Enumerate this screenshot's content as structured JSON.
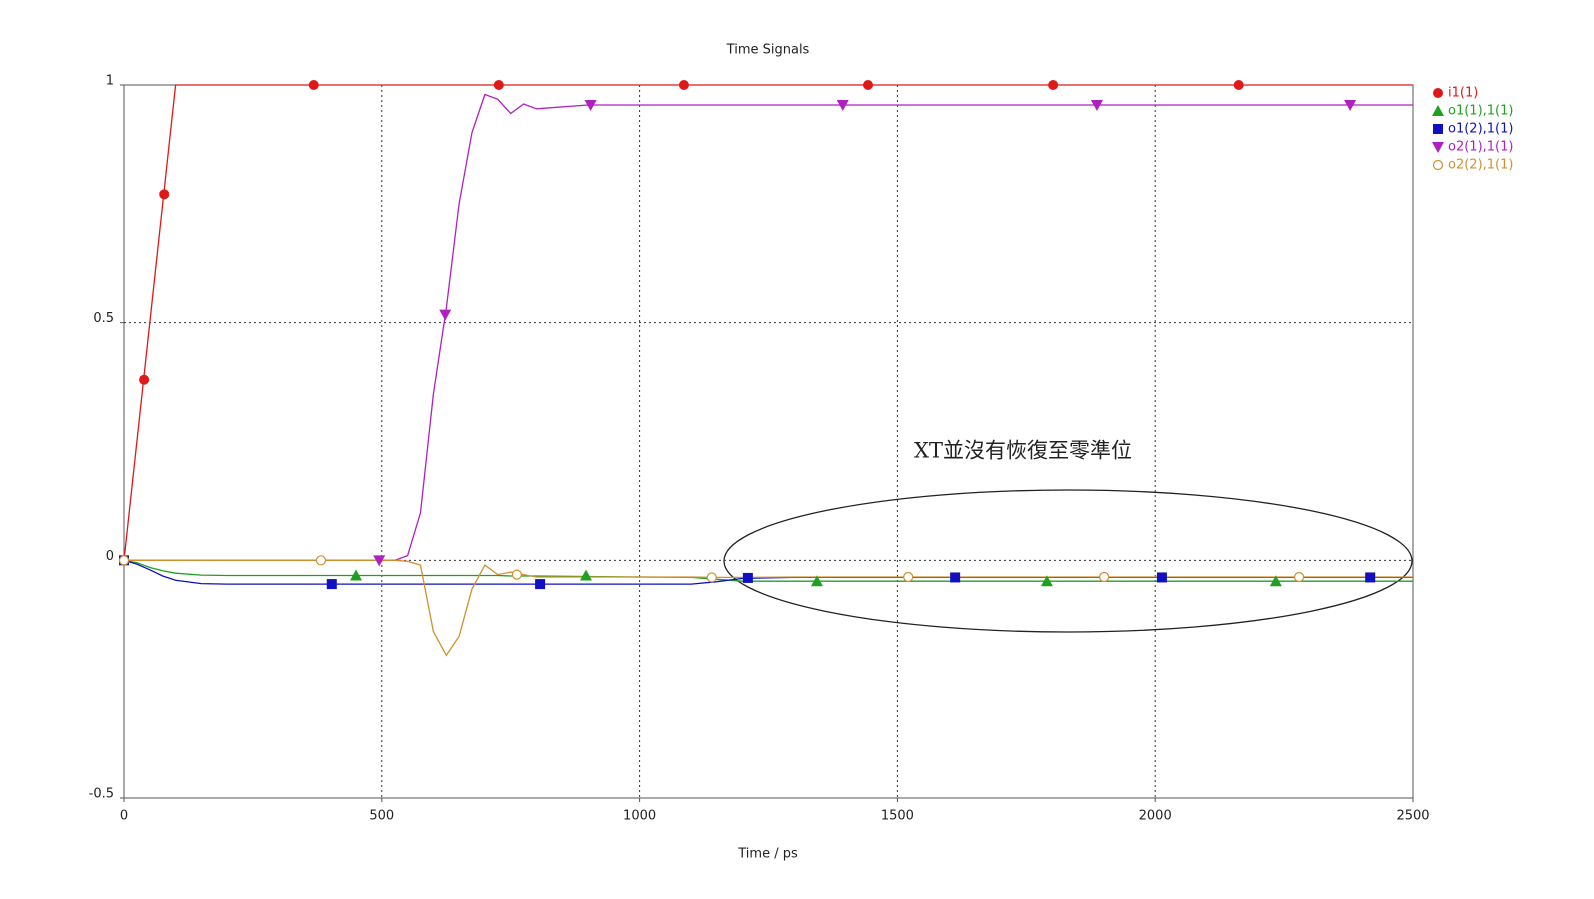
{
  "chart_data": {
    "type": "line",
    "title": "Time Signals",
    "x_label": "Time / ps",
    "x": [
      0,
      25,
      50,
      75,
      100,
      150,
      200,
      300,
      400,
      500,
      525,
      550,
      575,
      600,
      625,
      650,
      675,
      700,
      725,
      750,
      775,
      800,
      900,
      1000,
      1100,
      1150,
      1200,
      1300,
      1500,
      2000,
      2500
    ],
    "series": [
      {
        "name": "i1(1)",
        "color": "#e01818",
        "marker": "circle",
        "values": [
          0,
          0.25,
          0.5,
          0.75,
          1,
          1,
          1,
          1,
          1,
          1,
          1,
          1,
          1,
          1,
          1,
          1,
          1,
          1,
          1,
          1,
          1,
          1,
          1,
          1,
          1,
          1,
          1,
          1,
          1,
          1,
          1
        ],
        "marker_x": [
          39,
          78,
          368,
          727,
          1086,
          1443,
          1802,
          2162
        ],
        "marker_values": [
          0.38,
          0.77,
          1,
          1,
          1,
          1,
          1,
          1
        ]
      },
      {
        "name": "o1(1),1(1)",
        "color": "#20a020",
        "marker": "triangle-up",
        "values": [
          0,
          -0.005,
          -0.015,
          -0.022,
          -0.027,
          -0.031,
          -0.032,
          -0.032,
          -0.032,
          -0.032,
          -0.032,
          -0.032,
          -0.032,
          -0.032,
          -0.032,
          -0.032,
          -0.032,
          -0.032,
          -0.032,
          -0.033,
          -0.033,
          -0.033,
          -0.034,
          -0.035,
          -0.036,
          -0.04,
          -0.044,
          -0.044,
          -0.044,
          -0.044,
          -0.044
        ],
        "marker_x": [
          450,
          896,
          1344,
          1790,
          2234
        ],
        "marker_values": [
          -0.032,
          -0.032,
          -0.044,
          -0.044,
          -0.044
        ]
      },
      {
        "name": "o1(2),1(1)",
        "color": "#1010c0",
        "marker": "square",
        "values": [
          0,
          -0.008,
          -0.02,
          -0.033,
          -0.042,
          -0.049,
          -0.05,
          -0.05,
          -0.05,
          -0.05,
          -0.05,
          -0.05,
          -0.05,
          -0.05,
          -0.05,
          -0.05,
          -0.05,
          -0.05,
          -0.05,
          -0.05,
          -0.05,
          -0.05,
          -0.05,
          -0.05,
          -0.05,
          -0.045,
          -0.038,
          -0.036,
          -0.036,
          -0.036,
          -0.036
        ],
        "marker_x": [
          0,
          403,
          807,
          1210,
          1612,
          2013,
          2417
        ],
        "marker_values": [
          0,
          -0.05,
          -0.05,
          -0.037,
          -0.036,
          -0.036,
          -0.036
        ]
      },
      {
        "name": "o2(1),1(1)",
        "color": "#b020c0",
        "marker": "triangle-down",
        "values": [
          0,
          0,
          0,
          0,
          0,
          0,
          0,
          0,
          0,
          0,
          0,
          0.01,
          0.1,
          0.35,
          0.53,
          0.75,
          0.9,
          0.98,
          0.97,
          0.94,
          0.96,
          0.95,
          0.958,
          0.958,
          0.958,
          0.958,
          0.958,
          0.958,
          0.958,
          0.958,
          0.958
        ],
        "marker_x": [
          495,
          623,
          905,
          1394,
          1887,
          2378
        ],
        "marker_values": [
          0,
          0.517,
          0.958,
          0.958,
          0.958,
          0.958
        ]
      },
      {
        "name": "o2(2),1(1)",
        "color": "#d09030",
        "marker": "circle-open",
        "values": [
          0,
          0,
          0,
          0,
          0,
          0,
          0,
          0,
          0,
          0,
          0,
          -0.002,
          -0.01,
          -0.15,
          -0.2,
          -0.16,
          -0.06,
          -0.01,
          -0.03,
          -0.025,
          -0.03,
          -0.035,
          -0.035,
          -0.035,
          -0.035,
          -0.036,
          -0.036,
          -0.035,
          -0.035,
          -0.035,
          -0.035
        ],
        "marker_x": [
          0,
          382,
          762,
          1140,
          1521,
          1901,
          2279
        ],
        "marker_values": [
          0,
          0,
          -0.03,
          -0.036,
          -0.035,
          -0.035,
          -0.035
        ]
      }
    ],
    "xlim": [
      0,
      2500
    ],
    "xticks": [
      0,
      500,
      1000,
      1500,
      2000,
      2500
    ],
    "ylim": [
      -0.5,
      1
    ],
    "yticks": [
      -0.5,
      0,
      0.5,
      1
    ],
    "grid": true,
    "legend": "right",
    "annotation": "XT並沒有恢復至零準位"
  }
}
